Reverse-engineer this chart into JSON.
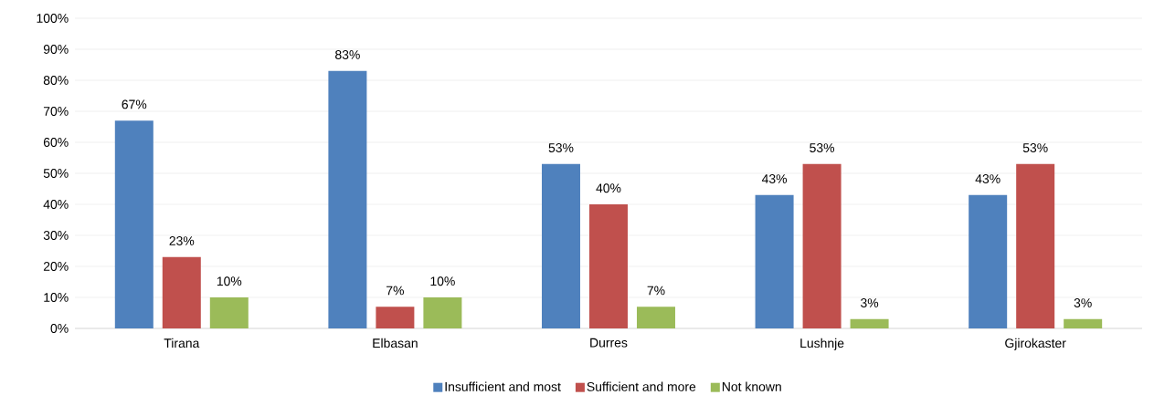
{
  "chart_data": {
    "type": "bar",
    "categories": [
      "Tirana",
      "Elbasan",
      "Durres",
      "Lushnje",
      "Gjirokaster"
    ],
    "series": [
      {
        "name": "Insufficient and most",
        "color": "#4f81bd",
        "values": [
          67,
          83,
          53,
          43,
          43
        ],
        "value_labels": [
          "67%",
          "83%",
          "53%",
          "43%",
          "43%"
        ]
      },
      {
        "name": "Sufficient and more",
        "color": "#c0504d",
        "values": [
          23,
          7,
          40,
          53,
          53
        ],
        "value_labels": [
          "23%",
          "7%",
          "40%",
          "53%",
          "53%"
        ]
      },
      {
        "name": "Not known",
        "color": "#9bbb59",
        "values": [
          10,
          10,
          7,
          3,
          3
        ],
        "value_labels": [
          "10%",
          "10%",
          "7%",
          "3%",
          "3%"
        ]
      }
    ],
    "ylim": [
      0,
      100
    ],
    "yticks": [
      {
        "value": 0,
        "label": "0%"
      },
      {
        "value": 10,
        "label": "10%"
      },
      {
        "value": 20,
        "label": "20%"
      },
      {
        "value": 30,
        "label": "30%"
      },
      {
        "value": 40,
        "label": "40%"
      },
      {
        "value": 50,
        "label": "50%"
      },
      {
        "value": 60,
        "label": "60%"
      },
      {
        "value": 70,
        "label": "70%"
      },
      {
        "value": 80,
        "label": "80%"
      },
      {
        "value": 90,
        "label": "90%"
      },
      {
        "value": 100,
        "label": "100%"
      }
    ],
    "grid": "y",
    "legend": "bottom"
  }
}
